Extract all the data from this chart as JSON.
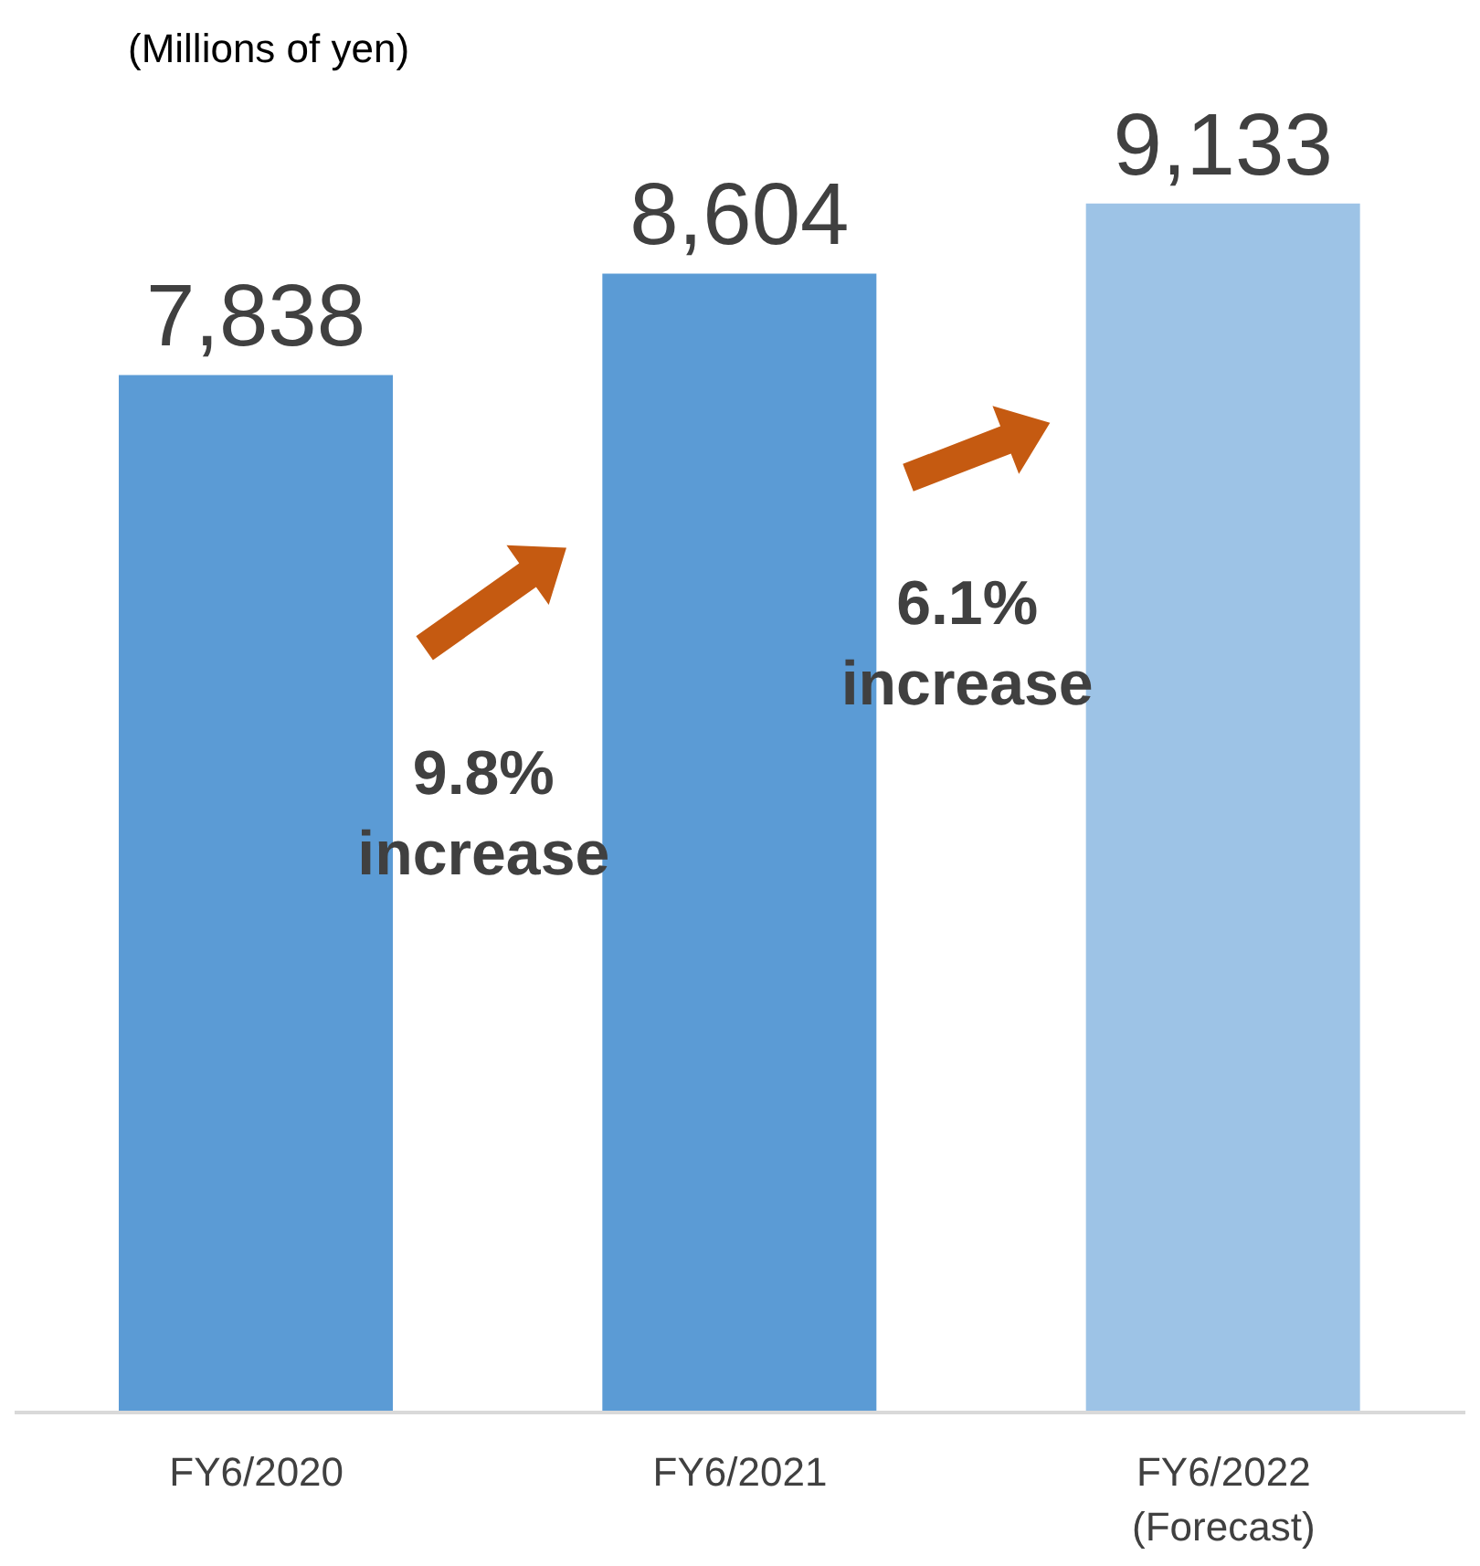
{
  "chart_data": {
    "type": "bar",
    "categories": [
      "FY6/2020",
      "FY6/2021",
      "FY6/2022 (Forecast)"
    ],
    "values": [
      7838,
      8604,
      9133
    ],
    "colors": [
      "#5b9bd5",
      "#5b9bd5",
      "#9dc3e6"
    ],
    "value_labels": [
      "7,838",
      "8,604",
      "9,133"
    ],
    "tick_labels": "x",
    "annotations": [
      "(Millions of yen)",
      "9.8% increase",
      "6.1% increase"
    ]
  }
}
